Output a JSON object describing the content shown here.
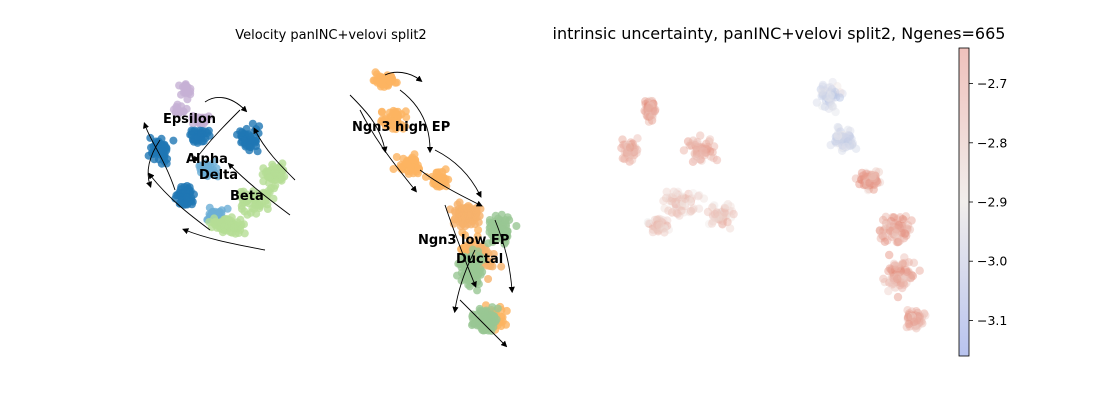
{
  "chart_data": [
    {
      "type": "scatter",
      "title": "Velocity panINC+velovi split2",
      "xlabel": "",
      "ylabel": "",
      "grid": false,
      "axes_visible": false,
      "overlay": "velocity streamlines with arrowheads (black)",
      "series": [
        {
          "name": "Epsilon",
          "color": "#c5b0d5"
        },
        {
          "name": "Alpha",
          "color": "#1f77b4"
        },
        {
          "name": "Delta",
          "color": "#6baed6"
        },
        {
          "name": "Beta",
          "color": "#b5dd95"
        },
        {
          "name": "Ngn3 high EP",
          "color": "#fdb462"
        },
        {
          "name": "Ngn3 low EP",
          "color": "#f6b26b"
        },
        {
          "name": "Ductal",
          "color": "#98c794"
        }
      ],
      "cluster_labels": [
        "Epsilon",
        "Alpha",
        "Delta",
        "Beta",
        "Ngn3 high EP",
        "Ngn3 low EP",
        "Ductal"
      ]
    },
    {
      "type": "scatter",
      "title": "intrinsic uncertainty, panINC+velovi split2, Ngenes=665",
      "xlabel": "",
      "ylabel": "",
      "grid": false,
      "axes_visible": false,
      "colormap": "coolwarm",
      "colorbar": {
        "vmin": -3.16,
        "vmax": -2.64,
        "ticks": [
          -2.7,
          -2.8,
          -2.9,
          -3.0,
          -3.1
        ],
        "tick_labels": [
          "−2.7",
          "−2.8",
          "−2.9",
          "−3.0",
          "−3.1"
        ],
        "low_color": "#b8c3ee",
        "mid_color": "#f1eeec",
        "high_color": "#efc1bc"
      }
    }
  ]
}
